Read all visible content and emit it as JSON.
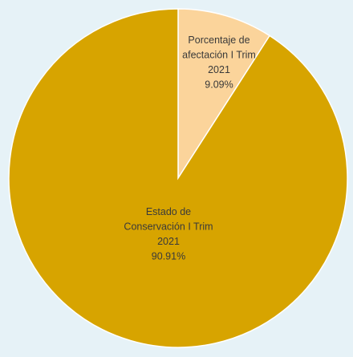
{
  "colors": {
    "background": "#e6f2f7",
    "slice_conservation": "#d7a400",
    "slice_affectation": "#fbd49b",
    "slice_border": "#ffffff"
  },
  "chart_data": {
    "type": "pie",
    "title": "",
    "start_angle_deg": 0,
    "direction": "clockwise",
    "slices": [
      {
        "category_lines": [
          "Porcentaje de",
          "afectación I Trim",
          "2021"
        ],
        "value": 9.09,
        "value_label": "9.09%",
        "color": "#fbd49b"
      },
      {
        "category_lines": [
          "Estado de",
          "Conservación I Trim",
          "2021"
        ],
        "value": 90.91,
        "value_label": "90.91%",
        "color": "#d7a400"
      }
    ]
  }
}
